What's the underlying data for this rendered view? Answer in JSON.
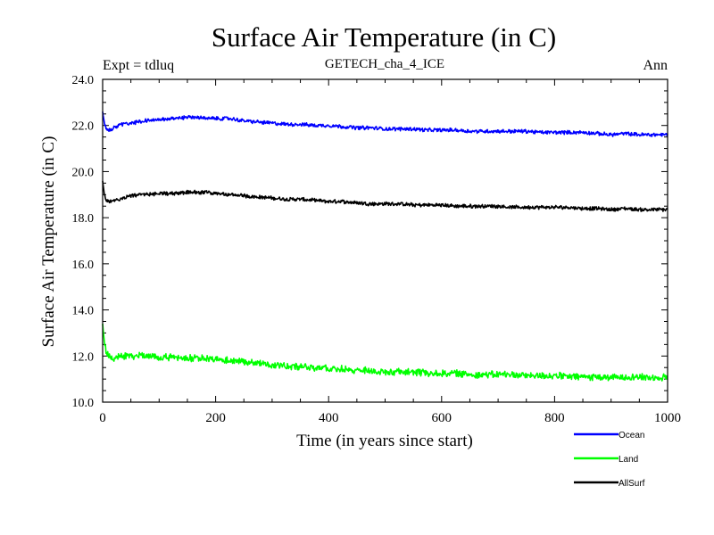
{
  "chart_data": {
    "type": "line",
    "title": "Surface Air Temperature (in C)",
    "subtitle": "GETECH_cha_4_ICE",
    "experiment_label": "Expt = tdluq",
    "period_label": "Ann",
    "xlabel": "Time (in years since start)",
    "ylabel": "Surface Air Temperature (in C)",
    "xlim": [
      0,
      1000
    ],
    "ylim": [
      10.0,
      24.0
    ],
    "x_ticks": [
      0,
      200,
      400,
      600,
      800,
      1000
    ],
    "x_tick_labels": [
      "0",
      "200",
      "400",
      "600",
      "800",
      "1000"
    ],
    "y_ticks": [
      10.0,
      12.0,
      14.0,
      16.0,
      18.0,
      20.0,
      22.0,
      24.0
    ],
    "y_tick_labels": [
      "10.0",
      "12.0",
      "14.0",
      "16.0",
      "18.0",
      "20.0",
      "22.0",
      "24.0"
    ],
    "grid": false,
    "legend_position": "bottom-right",
    "series": [
      {
        "name": "Ocean",
        "color": "#0000ff",
        "x": [
          0,
          3,
          6,
          10,
          15,
          20,
          30,
          40,
          50,
          75,
          100,
          125,
          150,
          175,
          200,
          225,
          250,
          275,
          300,
          325,
          350,
          375,
          400,
          425,
          450,
          475,
          500,
          525,
          550,
          575,
          600,
          625,
          650,
          675,
          700,
          725,
          750,
          775,
          800,
          825,
          850,
          875,
          900,
          925,
          950,
          975,
          1000
        ],
        "y": [
          22.6,
          22.1,
          21.9,
          21.8,
          21.8,
          21.9,
          22.0,
          22.1,
          22.1,
          22.2,
          22.25,
          22.3,
          22.35,
          22.35,
          22.3,
          22.3,
          22.2,
          22.15,
          22.1,
          22.05,
          22.05,
          22.0,
          22.0,
          21.95,
          21.9,
          21.9,
          21.85,
          21.85,
          21.85,
          21.8,
          21.8,
          21.8,
          21.75,
          21.75,
          21.75,
          21.75,
          21.75,
          21.7,
          21.7,
          21.7,
          21.7,
          21.65,
          21.6,
          21.65,
          21.6,
          21.6,
          21.6
        ]
      },
      {
        "name": "Land",
        "color": "#00ff00",
        "x": [
          0,
          3,
          6,
          10,
          15,
          20,
          30,
          40,
          50,
          75,
          100,
          125,
          150,
          175,
          200,
          225,
          250,
          275,
          300,
          325,
          350,
          375,
          400,
          425,
          450,
          475,
          500,
          525,
          550,
          575,
          600,
          625,
          650,
          675,
          700,
          725,
          750,
          775,
          800,
          825,
          850,
          875,
          900,
          925,
          950,
          975,
          1000
        ],
        "y": [
          13.4,
          12.6,
          12.2,
          12.0,
          11.9,
          11.9,
          12.0,
          12.0,
          12.0,
          12.0,
          11.95,
          11.95,
          11.9,
          11.9,
          11.85,
          11.8,
          11.75,
          11.7,
          11.6,
          11.55,
          11.55,
          11.5,
          11.45,
          11.45,
          11.4,
          11.35,
          11.3,
          11.3,
          11.3,
          11.25,
          11.25,
          11.25,
          11.2,
          11.2,
          11.2,
          11.2,
          11.15,
          11.15,
          11.15,
          11.1,
          11.1,
          11.1,
          11.05,
          11.1,
          11.1,
          11.05,
          11.1
        ]
      },
      {
        "name": "AllSurf",
        "color": "#000000",
        "x": [
          0,
          3,
          6,
          10,
          15,
          20,
          30,
          40,
          50,
          75,
          100,
          125,
          150,
          175,
          200,
          225,
          250,
          275,
          300,
          325,
          350,
          375,
          400,
          425,
          450,
          475,
          500,
          525,
          550,
          575,
          600,
          625,
          650,
          675,
          700,
          725,
          750,
          775,
          800,
          825,
          850,
          875,
          900,
          925,
          950,
          975,
          1000
        ],
        "y": [
          19.6,
          19.0,
          18.75,
          18.7,
          18.7,
          18.75,
          18.8,
          18.9,
          18.95,
          19.0,
          19.05,
          19.05,
          19.1,
          19.1,
          19.05,
          19.0,
          18.95,
          18.9,
          18.85,
          18.8,
          18.8,
          18.75,
          18.7,
          18.7,
          18.65,
          18.6,
          18.6,
          18.6,
          18.55,
          18.55,
          18.55,
          18.5,
          18.5,
          18.5,
          18.5,
          18.45,
          18.45,
          18.45,
          18.45,
          18.45,
          18.4,
          18.4,
          18.35,
          18.4,
          18.35,
          18.35,
          18.35
        ]
      }
    ]
  }
}
